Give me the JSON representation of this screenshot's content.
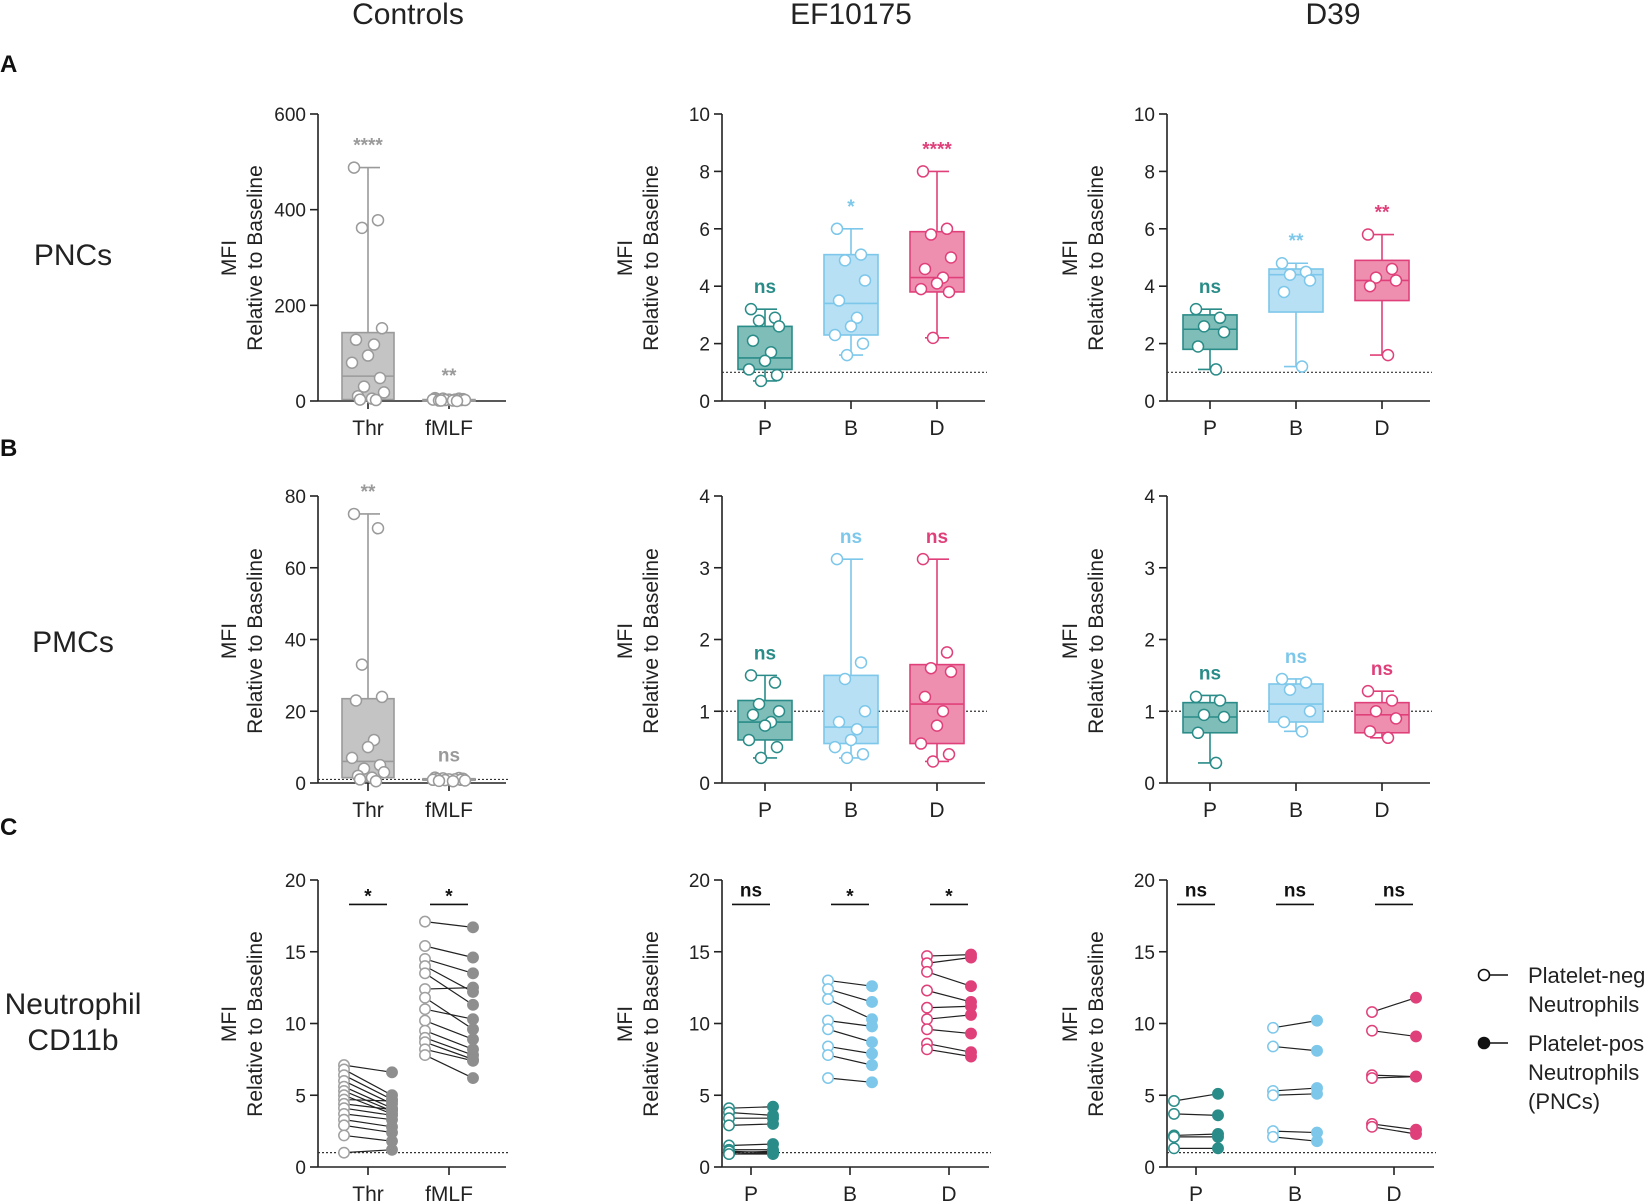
{
  "columns": [
    "Controls",
    "EF10175",
    "D39"
  ],
  "rows": [
    {
      "letter": "A",
      "label": [
        "PNCs"
      ]
    },
    {
      "letter": "B",
      "label": [
        "PMCs"
      ]
    },
    {
      "letter": "C",
      "label": [
        "Neutrophil",
        "CD11b"
      ]
    }
  ],
  "y_label": [
    "MFI",
    "Relative to Baseline"
  ],
  "legend": {
    "neg": [
      "Platelet-neg",
      "Neutrophils"
    ],
    "pos": [
      "Platelet-pos",
      "Neutrophils",
      "(PNCs)"
    ]
  },
  "colors": {
    "gray": "#a6a6a6",
    "teal": "#2a8c88",
    "blue": "#7cc7ea",
    "pink": "#e0407a",
    "teal_fill": "#7fbdb8",
    "blue_fill": "#b7e0f5",
    "pink_fill": "#ef8fb0",
    "gray_fill": "#c4c4c4"
  },
  "chart_data": [
    {
      "id": "A-controls",
      "type": "box",
      "row": 0,
      "col": 0,
      "ylim": [
        0,
        600
      ],
      "yticks": [
        0,
        200,
        400,
        600
      ],
      "baseline": null,
      "groups": [
        {
          "name": "Thr",
          "color": "gray",
          "fill": "gray_fill",
          "box": {
            "min": 2,
            "q1": 3,
            "median": 52,
            "q3": 143,
            "max": 488
          },
          "points": [
            488,
            378,
            362,
            152,
            128,
            118,
            95,
            80,
            48,
            30,
            18,
            10,
            5,
            3,
            2
          ],
          "sig": "****"
        },
        {
          "name": "fMLF",
          "color": "gray",
          "fill": "gray_fill",
          "box": {
            "min": 0,
            "q1": 1,
            "median": 2,
            "q3": 3,
            "max": 6
          },
          "points": [
            6,
            5,
            5,
            4,
            4,
            3,
            3,
            3,
            2,
            2,
            2,
            1,
            1,
            1,
            0
          ],
          "sig": "**"
        }
      ]
    },
    {
      "id": "A-EF10175",
      "type": "box",
      "row": 0,
      "col": 1,
      "ylim": [
        0,
        10
      ],
      "yticks": [
        0,
        2,
        4,
        6,
        8,
        10
      ],
      "baseline": 1,
      "groups": [
        {
          "name": "P",
          "color": "teal",
          "fill": "teal_fill",
          "box": {
            "min": 0.7,
            "q1": 1.1,
            "median": 1.5,
            "q3": 2.6,
            "max": 3.2
          },
          "points": [
            3.2,
            2.9,
            2.8,
            2.6,
            2.1,
            1.7,
            1.4,
            1.1,
            0.9,
            0.7
          ],
          "sig": "ns"
        },
        {
          "name": "B",
          "color": "blue",
          "fill": "blue_fill",
          "box": {
            "min": 1.6,
            "q1": 2.3,
            "median": 3.4,
            "q3": 5.1,
            "max": 6.0
          },
          "points": [
            6.0,
            5.1,
            4.9,
            4.2,
            3.5,
            2.9,
            2.6,
            2.3,
            2.0,
            1.6
          ],
          "sig": "*"
        },
        {
          "name": "D",
          "color": "pink",
          "fill": "pink_fill",
          "box": {
            "min": 2.2,
            "q1": 3.8,
            "median": 4.3,
            "q3": 5.9,
            "max": 8.0
          },
          "points": [
            8.0,
            6.0,
            5.8,
            5.0,
            4.6,
            4.3,
            4.1,
            3.9,
            3.8,
            2.2
          ],
          "sig": "****"
        }
      ]
    },
    {
      "id": "A-D39",
      "type": "box",
      "row": 0,
      "col": 2,
      "ylim": [
        0,
        10
      ],
      "yticks": [
        0,
        2,
        4,
        6,
        8,
        10
      ],
      "baseline": 1,
      "groups": [
        {
          "name": "P",
          "color": "teal",
          "fill": "teal_fill",
          "box": {
            "min": 1.1,
            "q1": 1.8,
            "median": 2.5,
            "q3": 3.0,
            "max": 3.2
          },
          "points": [
            3.2,
            2.9,
            2.6,
            2.4,
            1.9,
            1.1
          ],
          "sig": "ns"
        },
        {
          "name": "B",
          "color": "blue",
          "fill": "blue_fill",
          "box": {
            "min": 1.2,
            "q1": 3.1,
            "median": 4.4,
            "q3": 4.6,
            "max": 4.8
          },
          "points": [
            4.8,
            4.5,
            4.4,
            4.2,
            3.8,
            1.2
          ],
          "sig": "**"
        },
        {
          "name": "D",
          "color": "pink",
          "fill": "pink_fill",
          "box": {
            "min": 1.6,
            "q1": 3.5,
            "median": 4.2,
            "q3": 4.9,
            "max": 5.8
          },
          "points": [
            5.8,
            4.6,
            4.3,
            4.2,
            4.0,
            1.6
          ],
          "sig": "**"
        }
      ]
    },
    {
      "id": "B-controls",
      "type": "box",
      "row": 1,
      "col": 0,
      "ylim": [
        0,
        80
      ],
      "yticks": [
        0,
        20,
        40,
        60,
        80
      ],
      "baseline": 1,
      "groups": [
        {
          "name": "Thr",
          "color": "gray",
          "fill": "gray_fill",
          "box": {
            "min": 0.5,
            "q1": 1.5,
            "median": 6,
            "q3": 23.5,
            "max": 75
          },
          "points": [
            75,
            71,
            33,
            24,
            23,
            12,
            10,
            7,
            5,
            4,
            3,
            2,
            1.5,
            1,
            0.5
          ],
          "sig": "**"
        },
        {
          "name": "fMLF",
          "color": "gray",
          "fill": "gray_fill",
          "box": {
            "min": 0.5,
            "q1": 0.8,
            "median": 1.0,
            "q3": 1.2,
            "max": 1.5
          },
          "points": [
            1.5,
            1.4,
            1.3,
            1.2,
            1.1,
            1.0,
            1.0,
            0.9,
            0.9,
            0.8,
            0.7,
            0.6,
            0.5
          ],
          "sig": "ns"
        }
      ]
    },
    {
      "id": "B-EF10175",
      "type": "box",
      "row": 1,
      "col": 1,
      "ylim": [
        0,
        4
      ],
      "yticks": [
        0,
        1,
        2,
        3,
        4
      ],
      "baseline": 1,
      "groups": [
        {
          "name": "P",
          "color": "teal",
          "fill": "teal_fill",
          "box": {
            "min": 0.35,
            "q1": 0.6,
            "median": 0.85,
            "q3": 1.15,
            "max": 1.5
          },
          "points": [
            1.5,
            1.4,
            1.1,
            1.0,
            0.95,
            0.85,
            0.8,
            0.6,
            0.5,
            0.35
          ],
          "sig": "ns"
        },
        {
          "name": "B",
          "color": "blue",
          "fill": "blue_fill",
          "box": {
            "min": 0.35,
            "q1": 0.55,
            "median": 0.78,
            "q3": 1.5,
            "max": 3.12
          },
          "points": [
            3.12,
            1.68,
            1.45,
            1.0,
            0.85,
            0.75,
            0.6,
            0.5,
            0.4,
            0.35
          ],
          "sig": "ns"
        },
        {
          "name": "D",
          "color": "pink",
          "fill": "pink_fill",
          "box": {
            "min": 0.3,
            "q1": 0.55,
            "median": 1.1,
            "q3": 1.65,
            "max": 3.12
          },
          "points": [
            3.12,
            1.82,
            1.6,
            1.55,
            1.2,
            1.0,
            0.8,
            0.55,
            0.4,
            0.3
          ],
          "sig": "ns"
        }
      ]
    },
    {
      "id": "B-D39",
      "type": "box",
      "row": 1,
      "col": 2,
      "ylim": [
        0,
        4
      ],
      "yticks": [
        0,
        1,
        2,
        3,
        4
      ],
      "baseline": 1,
      "groups": [
        {
          "name": "P",
          "color": "teal",
          "fill": "teal_fill",
          "box": {
            "min": 0.28,
            "q1": 0.7,
            "median": 0.92,
            "q3": 1.12,
            "max": 1.22
          },
          "points": [
            1.2,
            1.15,
            0.95,
            0.92,
            0.7,
            0.28
          ],
          "sig": "ns"
        },
        {
          "name": "B",
          "color": "blue",
          "fill": "blue_fill",
          "box": {
            "min": 0.72,
            "q1": 0.85,
            "median": 1.1,
            "q3": 1.38,
            "max": 1.45
          },
          "points": [
            1.45,
            1.4,
            1.3,
            1.0,
            0.85,
            0.72
          ],
          "sig": "ns"
        },
        {
          "name": "D",
          "color": "pink",
          "fill": "pink_fill",
          "box": {
            "min": 0.63,
            "q1": 0.7,
            "median": 0.95,
            "q3": 1.12,
            "max": 1.28
          },
          "points": [
            1.28,
            1.15,
            1.0,
            0.9,
            0.72,
            0.63
          ],
          "sig": "ns"
        }
      ]
    },
    {
      "id": "C-controls",
      "type": "paired",
      "row": 2,
      "col": 0,
      "ylim": [
        0,
        20
      ],
      "yticks": [
        0,
        5,
        10,
        15,
        20
      ],
      "baseline": 1,
      "groups": [
        {
          "name": "Thr",
          "color": "gray",
          "sig": "*",
          "pairs": [
            [
              7.1,
              6.6
            ],
            [
              6.8,
              5.0
            ],
            [
              6.4,
              4.7
            ],
            [
              6.0,
              4.4
            ],
            [
              5.6,
              4.1
            ],
            [
              5.3,
              3.9
            ],
            [
              5.0,
              3.7
            ],
            [
              4.7,
              4.6
            ],
            [
              4.4,
              4.0
            ],
            [
              4.1,
              3.6
            ],
            [
              3.7,
              3.3
            ],
            [
              3.3,
              2.8
            ],
            [
              2.9,
              2.4
            ],
            [
              2.2,
              1.8
            ],
            [
              1.0,
              1.2
            ]
          ]
        },
        {
          "name": "fMLF",
          "color": "gray",
          "sig": "*",
          "pairs": [
            [
              17.1,
              16.7
            ],
            [
              15.4,
              14.6
            ],
            [
              14.5,
              13.5
            ],
            [
              14.0,
              12.2
            ],
            [
              13.5,
              11.3
            ],
            [
              12.4,
              12.5
            ],
            [
              11.8,
              9.6
            ],
            [
              11.0,
              10.3
            ],
            [
              10.2,
              8.9
            ],
            [
              9.5,
              8.2
            ],
            [
              9.0,
              7.8
            ],
            [
              8.7,
              7.5
            ],
            [
              8.2,
              7.4
            ],
            [
              7.8,
              6.2
            ]
          ]
        }
      ]
    },
    {
      "id": "C-EF10175",
      "type": "paired",
      "row": 2,
      "col": 1,
      "ylim": [
        0,
        20
      ],
      "yticks": [
        0,
        5,
        10,
        15,
        20
      ],
      "baseline": 1,
      "groups": [
        {
          "name": "P",
          "color": "teal",
          "sig": "ns",
          "pairs": [
            [
              4.1,
              4.2
            ],
            [
              3.8,
              3.6
            ],
            [
              3.4,
              3.4
            ],
            [
              2.9,
              3.0
            ],
            [
              1.5,
              1.6
            ],
            [
              1.2,
              1.2
            ],
            [
              1.0,
              1.1
            ],
            [
              0.9,
              1.0
            ],
            [
              1.1,
              1.0
            ],
            [
              0.9,
              0.9
            ]
          ]
        },
        {
          "name": "B",
          "color": "blue",
          "sig": "*",
          "pairs": [
            [
              13.0,
              12.6
            ],
            [
              12.4,
              11.5
            ],
            [
              11.7,
              10.3
            ],
            [
              10.2,
              9.8
            ],
            [
              9.6,
              8.7
            ],
            [
              8.4,
              7.9
            ],
            [
              7.8,
              7.1
            ],
            [
              6.2,
              5.9
            ]
          ]
        },
        {
          "name": "D",
          "color": "pink",
          "sig": "*",
          "pairs": [
            [
              14.7,
              14.8
            ],
            [
              14.2,
              14.6
            ],
            [
              13.6,
              12.6
            ],
            [
              12.3,
              11.5
            ],
            [
              11.1,
              11.2
            ],
            [
              10.3,
              10.6
            ],
            [
              9.6,
              9.3
            ],
            [
              8.6,
              8.0
            ],
            [
              8.2,
              7.7
            ]
          ]
        }
      ]
    },
    {
      "id": "C-D39",
      "type": "paired",
      "row": 2,
      "col": 2,
      "ylim": [
        0,
        20
      ],
      "yticks": [
        0,
        5,
        10,
        15,
        20
      ],
      "baseline": 1,
      "groups": [
        {
          "name": "P",
          "color": "teal",
          "sig": "ns",
          "pairs": [
            [
              4.6,
              5.1
            ],
            [
              3.7,
              3.6
            ],
            [
              2.2,
              2.3
            ],
            [
              2.1,
              2.1
            ],
            [
              1.3,
              1.3
            ]
          ]
        },
        {
          "name": "B",
          "color": "blue",
          "sig": "ns",
          "pairs": [
            [
              9.7,
              10.2
            ],
            [
              8.4,
              8.1
            ],
            [
              5.3,
              5.5
            ],
            [
              5.0,
              5.1
            ],
            [
              2.5,
              2.4
            ],
            [
              2.1,
              1.8
            ]
          ]
        },
        {
          "name": "D",
          "color": "pink",
          "sig": "ns",
          "pairs": [
            [
              10.8,
              11.8
            ],
            [
              9.5,
              9.1
            ],
            [
              6.4,
              6.3
            ],
            [
              6.2,
              6.3
            ],
            [
              3.0,
              2.6
            ],
            [
              2.8,
              2.3
            ]
          ]
        }
      ]
    }
  ]
}
